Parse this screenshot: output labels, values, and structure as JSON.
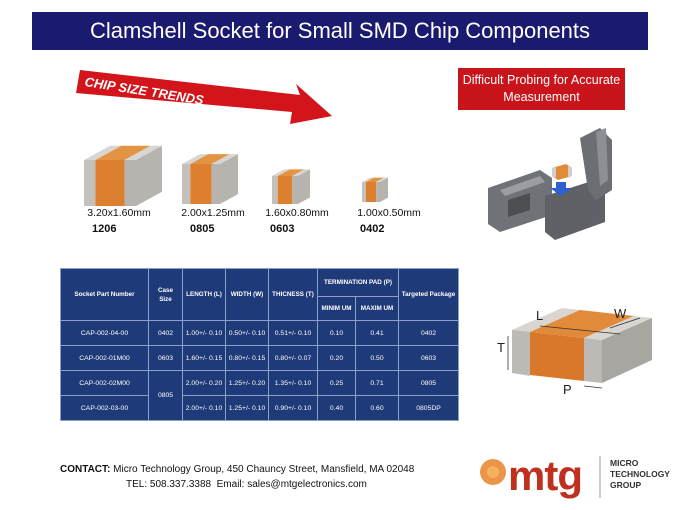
{
  "header": {
    "title": "Clamshell Socket for Small SMD Chip Components"
  },
  "banner": {
    "arrow_label": "CHIP SIZE TRENDS",
    "callout": "Difficult Probing for Accurate Measurement"
  },
  "chips": [
    {
      "size": "3.20x1.60mm",
      "code": "1206"
    },
    {
      "size": "2.00x1.25mm",
      "code": "0805"
    },
    {
      "size": "1.60x0.80mm",
      "code": "0603"
    },
    {
      "size": "1.00x0.50mm",
      "code": "0402"
    }
  ],
  "table": {
    "headers": {
      "part": "Socket Part Number",
      "case": "Case Size",
      "length": "LENGTH (L)",
      "width": "WIDTH (W)",
      "thickness": "THICNESS (T)",
      "pad": "TERMINATION PAD (P)",
      "min": "MINIM UM",
      "max": "MAXIM UM",
      "package": "Targeted Package"
    },
    "rows": [
      {
        "part": "CAP-002-04-00",
        "case": "0402",
        "length": "1.00+/- 0.10",
        "width": "0.50+/- 0.10",
        "thickness": "0.51+/- 0.10",
        "min": "0.10",
        "max": "0.41",
        "package": "0402"
      },
      {
        "part": "CAP-002-01M00",
        "case": "0603",
        "length": "1.60+/- 0.15",
        "width": "0.80+/- 0.15",
        "thickness": "0.80+/- 0.07",
        "min": "0.20",
        "max": "0.50",
        "package": "0603"
      },
      {
        "part": "CAP-002-02M00",
        "case": "0805",
        "length": "2.00+/- 0.20",
        "width": "1.25+/- 0.20",
        "thickness": "1.35+/- 0.10",
        "min": "0.25",
        "max": "0.71",
        "package": "0805"
      },
      {
        "part": "CAP-002-03-00",
        "length": "2.00+/- 0.10",
        "width": "1.25+/- 0.10",
        "thickness": "0.90+/- 0.10",
        "min": "0.40",
        "max": "0.60",
        "package": "0805DP"
      }
    ]
  },
  "diagram": {
    "labels": [
      "L",
      "W",
      "T",
      "P"
    ]
  },
  "contact": {
    "label": "CONTACT:",
    "address": "Micro Technology Group, 450 Chauncy Street, Mansfield, MA 02048",
    "phone": "TEL: 508.337.3388",
    "email": "Email: sales@mtgelectronics.com"
  },
  "logo": {
    "mark": "mtg",
    "name": [
      "MICRO",
      "TECHNOLOGY",
      "GROUP"
    ]
  }
}
